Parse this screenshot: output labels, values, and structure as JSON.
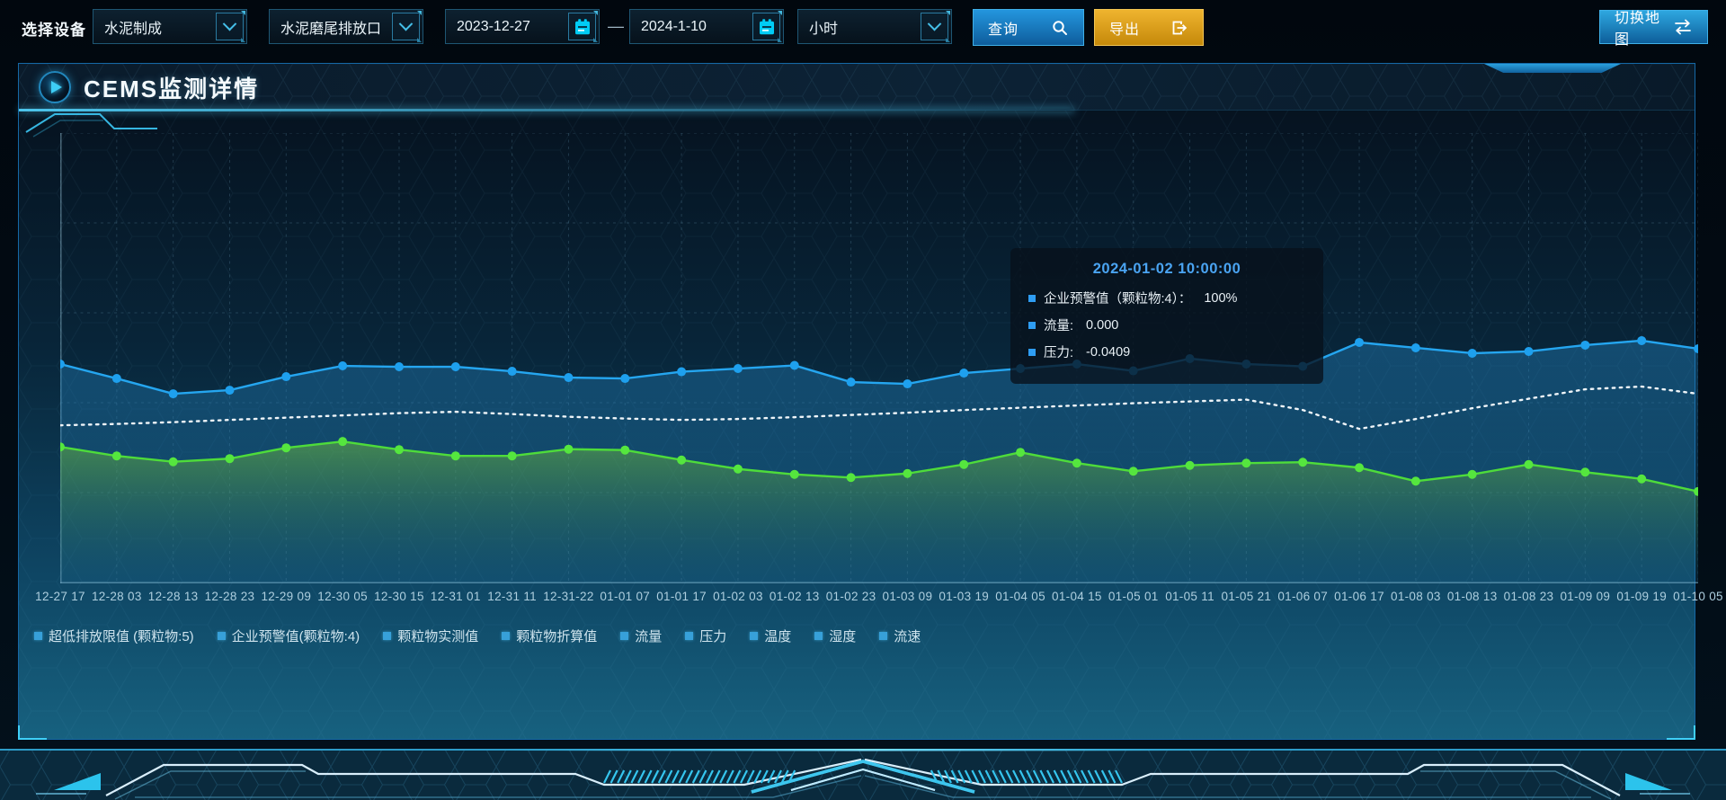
{
  "toolbar": {
    "device_label": "选择设备",
    "device_select": {
      "value": "水泥制成"
    },
    "outlet_select": {
      "value": "水泥磨尾排放口"
    },
    "date_start": {
      "value": "2023-12-27"
    },
    "date_separator": "—",
    "date_end": {
      "value": "2024-1-10"
    },
    "interval_select": {
      "value": "小时"
    },
    "query_button": "查询",
    "export_button": "导出",
    "switch_map_button": "切换地图"
  },
  "panel": {
    "title": "CEMS监测详情"
  },
  "tooltip": {
    "title": "2024-01-02 10:00:00",
    "rows": [
      {
        "label": "企业预警值（颗粒物:4）：",
        "value": "100%"
      },
      {
        "label": "流量:",
        "value": "0.000"
      },
      {
        "label": "压力:",
        "value": "-0.0409"
      }
    ]
  },
  "legend": [
    "超低排放限值 (颗粒物:5)",
    "企业预警值(颗粒物:4)",
    "颗粒物实测值",
    "颗粒物折算值",
    "流量",
    "压力",
    "温度",
    "湿度",
    "流速"
  ],
  "colors": {
    "accent_cyan": "#3fc8f0",
    "query_blue": "#1b86cc",
    "export_orange": "#d89a14",
    "tooltip_title": "#4aa4f2",
    "legend_marker": "#37a0d9"
  },
  "chart_data": {
    "type": "line",
    "title": "",
    "xlabel": "",
    "ylabel": "",
    "y_axis_labels_visible": false,
    "unit": "relative height, % of plot (no y-axis ticks shown)",
    "grid": {
      "dashed": true,
      "h_lines": 5,
      "v_line_per_tick": true
    },
    "legend_position": "bottom",
    "x_labels": [
      "12-27 17",
      "12-28 03",
      "12-28 13",
      "12-28 23",
      "12-29 09",
      "12-30 05",
      "12-30 15",
      "12-31 01",
      "12-31 11",
      "12-31-22",
      "01-01 07",
      "01-01 17",
      "01-02 03",
      "01-02 13",
      "01-02 23",
      "01-03 09",
      "01-03 19",
      "01-04 05",
      "01-04 15",
      "01-05 01",
      "01-05 11",
      "01-05 21",
      "01-06 07",
      "01-06 17",
      "01-08 03",
      "01-08 13",
      "01-08 23",
      "01-09 09",
      "01-09 19",
      "01-10 05"
    ],
    "series": [
      {
        "name": "流量",
        "style": "solid",
        "color": "#25a6f0",
        "dot_color": "#1ea0ee",
        "markers": true,
        "area": true,
        "area_top": "rgba(35,130,190,0.42)",
        "area_bottom": "rgba(30,115,170,0.16)",
        "values_pct": [
          48.7,
          45.5,
          42.1,
          42.9,
          45.9,
          48.3,
          48.1,
          48.1,
          47.1,
          45.7,
          45.5,
          47.0,
          47.7,
          48.4,
          44.7,
          44.3,
          46.7,
          47.7,
          48.7,
          47.2,
          49.9,
          48.7,
          48.2,
          53.5,
          52.3,
          51.1,
          51.5,
          52.9,
          53.9,
          52.1
        ]
      },
      {
        "name": "企业预警值(颗粒物:4)",
        "style": "dotted",
        "color": "#eef4f8",
        "dot_color": "#eef4f8",
        "markers": false,
        "area": false,
        "values_pct": [
          35.1,
          35.4,
          35.8,
          36.3,
          36.8,
          37.3,
          37.8,
          38.1,
          37.6,
          37.0,
          36.6,
          36.3,
          36.5,
          36.9,
          37.4,
          37.9,
          38.5,
          39.0,
          39.5,
          40.0,
          40.4,
          40.8,
          38.5,
          34.3,
          36.5,
          38.9,
          41.0,
          43.1,
          43.7,
          42.1
        ]
      },
      {
        "name": "压力",
        "style": "solid",
        "color": "#4edc3a",
        "dot_color": "#55e63e",
        "markers": true,
        "area": true,
        "area_top": "rgba(120,200,55,0.48)",
        "area_bottom": "rgba(45,110,80,0.02)",
        "values_pct": [
          30.3,
          28.3,
          27.0,
          27.7,
          30.1,
          31.5,
          29.7,
          28.3,
          28.3,
          29.8,
          29.6,
          27.4,
          25.4,
          24.2,
          23.5,
          24.4,
          26.4,
          29.1,
          26.7,
          24.9,
          26.2,
          26.7,
          26.9,
          25.7,
          22.7,
          24.2,
          26.4,
          24.7,
          23.2,
          20.4
        ]
      }
    ]
  }
}
